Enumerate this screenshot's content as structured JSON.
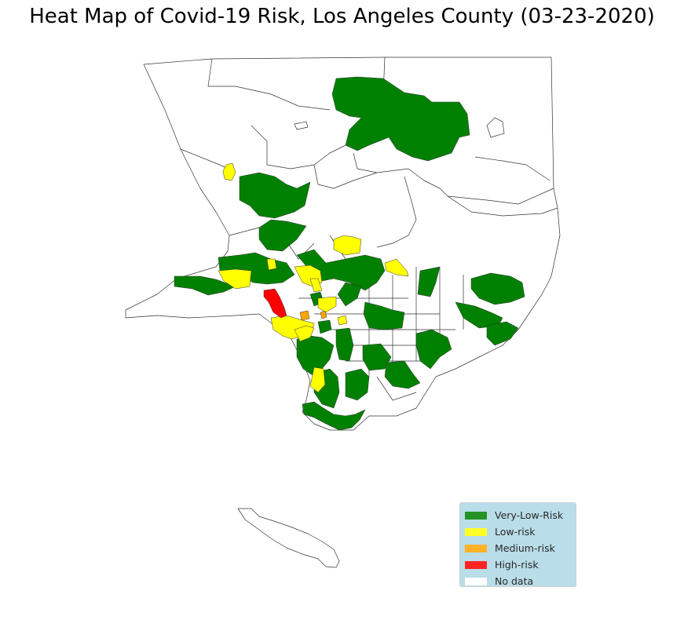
{
  "title": "Heat Map of Covid-19 Risk, Los Angeles County (03-23-2020)",
  "legend": {
    "placement": "lower-right",
    "items": [
      {
        "label": "Very-Low-Risk",
        "color": "#008000"
      },
      {
        "label": "Low-risk",
        "color": "#ffff00"
      },
      {
        "label": "Medium-risk",
        "color": "#ffa500"
      },
      {
        "label": "High-risk",
        "color": "#ff0000"
      },
      {
        "label": "No data",
        "color": "#ffffff"
      }
    ]
  },
  "colors": {
    "very_low": "#008000",
    "low": "#ffff00",
    "medium": "#ffa500",
    "high": "#ff0000",
    "no_data": "#ffffff",
    "border": "#333333",
    "legend_background": "#add8e6"
  }
}
